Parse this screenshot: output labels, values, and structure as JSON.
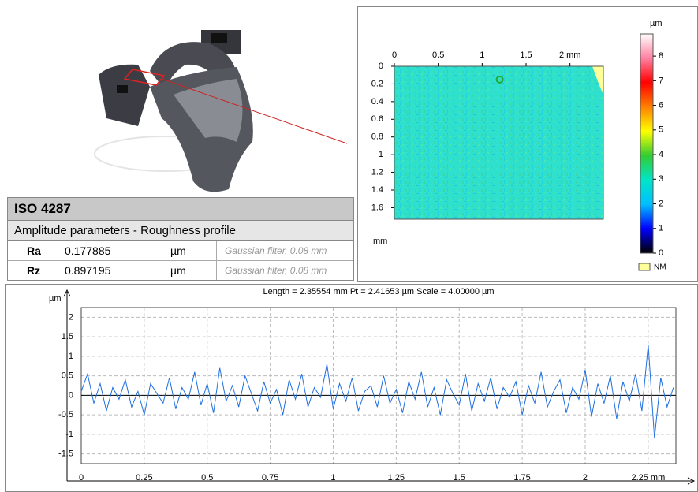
{
  "table": {
    "title": "ISO 4287",
    "subtitle": "Amplitude parameters - Roughness profile",
    "rows": [
      [
        "Ra",
        "0.177885",
        "µm",
        "Gaussian filter, 0.08 mm"
      ],
      [
        "Rz",
        "0.897195",
        "µm",
        "Gaussian filter, 0.08 mm"
      ]
    ]
  },
  "chart_data": [
    {
      "type": "heatmap",
      "xlim": [
        0,
        2.38
      ],
      "ylim": [
        0,
        1.73
      ],
      "xticks": [
        0,
        0.5,
        1,
        1.5,
        {
          "value": 2,
          "label": "2 mm"
        }
      ],
      "yticks": [
        0,
        0.2,
        0.4,
        0.6,
        0.8,
        1,
        1.2,
        1.4,
        1.6
      ],
      "ylabel": "mm",
      "colorbar": {
        "label": "µm",
        "lim": [
          0,
          8.9
        ],
        "ticks": [
          0,
          1,
          2,
          3,
          4,
          5,
          6,
          7,
          8
        ],
        "colors": [
          "#000000",
          "#0000ff",
          "#00bfff",
          "#00e5c8",
          "#33cc33",
          "#ffff00",
          "#ff8000",
          "#ff0000",
          "#ff80a0",
          "#ffffff"
        ]
      },
      "nm_label": "NM",
      "nm_color": "#ffff99"
    },
    {
      "type": "line",
      "title": "Length = 2.35554 mm  Pt = 2.41653 µm  Scale = 4.00000 µm",
      "ylabel": "µm",
      "color": "#1f6fe0",
      "grid": true,
      "xlim": [
        0,
        2.36
      ],
      "ylim": [
        -1.75,
        2.25
      ],
      "xticks": [
        0,
        0.25,
        0.5,
        0.75,
        1,
        1.25,
        1.5,
        1.75,
        2,
        {
          "value": 2.25,
          "label": "2.25 mm"
        }
      ],
      "yticks": [
        -1.5,
        -1,
        -0.5,
        0,
        0.5,
        1,
        1.5,
        2
      ],
      "x": [
        0,
        0.025,
        0.05,
        0.075,
        0.1,
        0.125,
        0.15,
        0.175,
        0.2,
        0.225,
        0.25,
        0.275,
        0.3,
        0.325,
        0.35,
        0.375,
        0.4,
        0.425,
        0.45,
        0.475,
        0.5,
        0.525,
        0.55,
        0.575,
        0.6,
        0.625,
        0.65,
        0.675,
        0.7,
        0.725,
        0.75,
        0.775,
        0.8,
        0.825,
        0.85,
        0.875,
        0.9,
        0.925,
        0.95,
        0.975,
        1,
        1.025,
        1.05,
        1.075,
        1.1,
        1.125,
        1.15,
        1.175,
        1.2,
        1.225,
        1.25,
        1.275,
        1.3,
        1.325,
        1.35,
        1.375,
        1.4,
        1.425,
        1.45,
        1.475,
        1.5,
        1.525,
        1.55,
        1.575,
        1.6,
        1.625,
        1.65,
        1.675,
        1.7,
        1.725,
        1.75,
        1.775,
        1.8,
        1.825,
        1.85,
        1.875,
        1.9,
        1.925,
        1.95,
        1.975,
        2,
        2.025,
        2.05,
        2.075,
        2.1,
        2.125,
        2.15,
        2.175,
        2.2,
        2.225,
        2.25,
        2.275,
        2.3,
        2.325,
        2.35
      ],
      "values": [
        0.1,
        0.55,
        -0.2,
        0.3,
        -0.4,
        0.2,
        -0.1,
        0.4,
        -0.3,
        0.1,
        -0.5,
        0.3,
        0.05,
        -0.2,
        0.45,
        -0.35,
        0.2,
        -0.1,
        0.6,
        -0.25,
        0.3,
        -0.45,
        0.7,
        -0.15,
        0.25,
        -0.3,
        0.5,
        0.05,
        -0.4,
        0.35,
        -0.2,
        0.15,
        -0.5,
        0.4,
        -0.1,
        0.55,
        -0.3,
        0.2,
        -0.05,
        0.8,
        -0.35,
        0.3,
        -0.15,
        0.45,
        -0.4,
        0.1,
        0.25,
        -0.3,
        0.5,
        -0.2,
        0.15,
        -0.45,
        0.35,
        -0.1,
        0.6,
        -0.3,
        0.2,
        -0.5,
        0.4,
        0.05,
        -0.25,
        0.55,
        -0.4,
        0.3,
        -0.15,
        0.45,
        -0.35,
        0.2,
        -0.05,
        0.35,
        -0.5,
        0.25,
        -0.2,
        0.6,
        -0.3,
        0.1,
        0.4,
        -0.45,
        0.2,
        -0.1,
        0.65,
        -0.55,
        0.3,
        -0.2,
        0.5,
        -0.6,
        0.35,
        -0.15,
        0.55,
        -0.4,
        1.3,
        -1.1,
        0.45,
        -0.3,
        0.2
      ]
    }
  ]
}
